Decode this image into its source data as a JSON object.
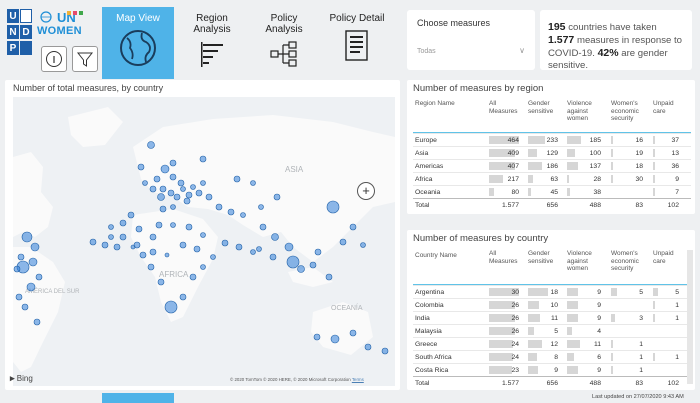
{
  "nav": {
    "tabs": [
      {
        "label": "Map View",
        "icon": "globe-icon",
        "active": true
      },
      {
        "label": "Region Analysis",
        "icon": "bar-list-icon",
        "active": false
      },
      {
        "label": "Policy Analysis",
        "icon": "tree-diagram-icon",
        "active": false
      },
      {
        "label": "Policy Detail",
        "icon": "document-icon",
        "active": false
      }
    ],
    "tab_lines": [
      [
        "Map View"
      ],
      [
        "Region",
        "Analysis"
      ],
      [
        "Policy",
        "Analysis"
      ],
      [
        "Policy Detail"
      ]
    ]
  },
  "logos": {
    "undp_letters": [
      "U",
      "N",
      "D",
      "P"
    ],
    "unwomen_un": "UN",
    "unwomen_women": "WOMEN"
  },
  "measures_filter": {
    "title": "Choose measures",
    "value": "Todas"
  },
  "stat": {
    "countries": "195",
    "text1": " countries have taken ",
    "measures": "1.577",
    "text2": " measures in response to COVID-19. ",
    "percent": "42%",
    "text3": " are gender sensitive."
  },
  "map": {
    "title": "Number of total measures, by country",
    "zoom_label": "+",
    "bing_label": "Bing",
    "copyright": "© 2020 TomTom © 2020 HERE, © 2020 Microsoft Corporation",
    "terms": "Terms",
    "region_labels": [
      "ASIA",
      "AFRICA",
      "AMÉRICA DEL SUR",
      "OCEANÍA"
    ],
    "accent": "#2f7ed8"
  },
  "region_table": {
    "title": "Number of measures by region",
    "headers": {
      "name": "Region Name",
      "all": "All Measures",
      "gender": "Gender sensitive",
      "violence": "Violence against women",
      "economic": "Women's economic security",
      "unpaid": "Unpaid care"
    },
    "rows": [
      {
        "name": "Europe",
        "all": "464",
        "gender": "233",
        "violence": "185",
        "economic": "16",
        "unpaid": "37"
      },
      {
        "name": "Asia",
        "all": "409",
        "gender": "129",
        "violence": "100",
        "economic": "19",
        "unpaid": "13"
      },
      {
        "name": "Americas",
        "all": "407",
        "gender": "186",
        "violence": "137",
        "economic": "18",
        "unpaid": "36"
      },
      {
        "name": "Africa",
        "all": "217",
        "gender": "63",
        "violence": "28",
        "economic": "30",
        "unpaid": "9"
      },
      {
        "name": "Oceania",
        "all": "80",
        "gender": "45",
        "violence": "38",
        "economic": "",
        "unpaid": "7"
      }
    ],
    "total": {
      "name": "Total",
      "all": "1.577",
      "gender": "656",
      "violence": "488",
      "economic": "83",
      "unpaid": "102"
    }
  },
  "country_table": {
    "title": "Number of measures by country",
    "headers": {
      "name": "Country Name",
      "all": "All Measures",
      "gender": "Gender sensitive",
      "violence": "Violence against women",
      "economic": "Women's economic security",
      "unpaid": "Unpaid care"
    },
    "rows": [
      {
        "name": "Argentina",
        "all": "30",
        "gender": "18",
        "violence": "9",
        "economic": "5",
        "unpaid": "5"
      },
      {
        "name": "Colombia",
        "all": "26",
        "gender": "10",
        "violence": "9",
        "economic": "",
        "unpaid": "1"
      },
      {
        "name": "India",
        "all": "26",
        "gender": "11",
        "violence": "9",
        "economic": "3",
        "unpaid": "1"
      },
      {
        "name": "Malaysia",
        "all": "26",
        "gender": "5",
        "violence": "4",
        "economic": "",
        "unpaid": ""
      },
      {
        "name": "Greece",
        "all": "24",
        "gender": "12",
        "violence": "11",
        "economic": "1",
        "unpaid": ""
      },
      {
        "name": "South Africa",
        "all": "24",
        "gender": "8",
        "violence": "6",
        "economic": "1",
        "unpaid": "1"
      },
      {
        "name": "Costa Rica",
        "all": "23",
        "gender": "9",
        "violence": "9",
        "economic": "1",
        "unpaid": ""
      }
    ],
    "total": {
      "name": "Total",
      "all": "1.577",
      "gender": "656",
      "violence": "488",
      "economic": "83",
      "unpaid": "102"
    }
  },
  "footer": {
    "updated": "Last updated on 27/07/2020 9:43 AM"
  }
}
